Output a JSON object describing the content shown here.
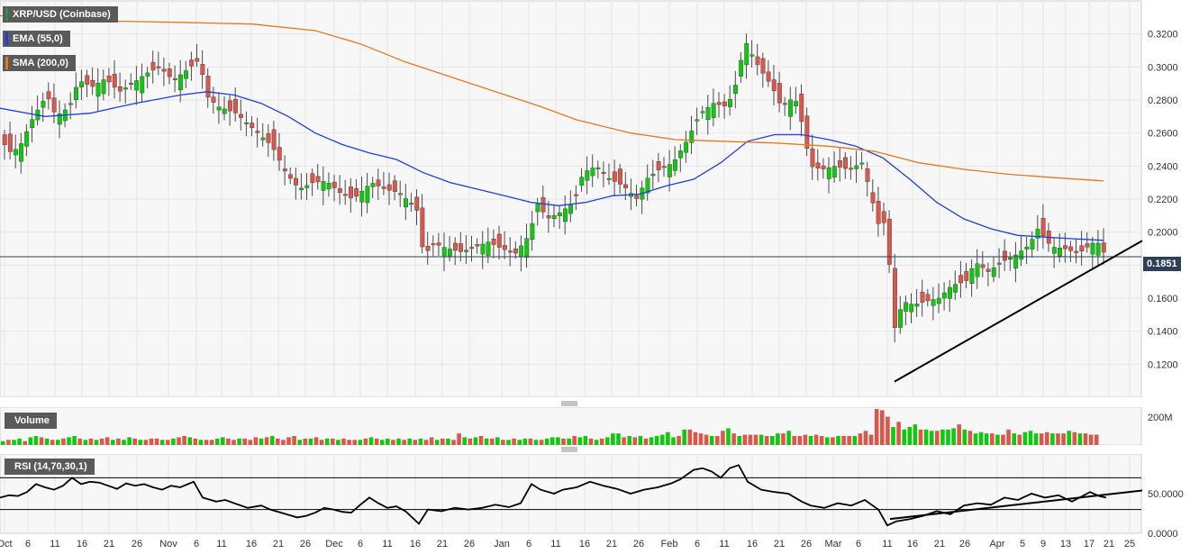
{
  "panels": {
    "price": {
      "legend": [
        {
          "key": "symbol",
          "text": "XRP/USD (Coinbase)",
          "color": "#2e8b57"
        },
        {
          "key": "ema",
          "text": "EMA (55,0)",
          "color": "#1f3fd6"
        },
        {
          "key": "sma",
          "text": "SMA (200,0)",
          "color": "#e07a1f"
        }
      ]
    },
    "volume": {
      "label": "Volume",
      "max_label": "200M"
    },
    "rsi": {
      "label": "RSI (14,70,30,1)"
    }
  },
  "colors": {
    "up": "#10c810",
    "down": "#d9574b",
    "ema": "#1f3fd6",
    "sma": "#e07a1f",
    "trendline": "#000000",
    "grid": "#e6e6e6",
    "plot_bg": "#f7f7f7"
  },
  "chart_data": [
    {
      "type": "candlestick",
      "title": "XRP/USD (Coinbase)",
      "ylim": [
        0.1,
        0.34
      ],
      "y_ticks": [
        "0.1200",
        "0.1400",
        "0.1600",
        "0.1800",
        "0.2000",
        "0.2200",
        "0.2400",
        "0.2600",
        "0.2800",
        "0.3000",
        "0.3200"
      ],
      "x_ticks": [
        "Oct",
        "6",
        "11",
        "16",
        "21",
        "26",
        "Nov",
        "6",
        "11",
        "16",
        "21",
        "26",
        "Dec",
        "6",
        "11",
        "16",
        "21",
        "26",
        "Jan",
        "6",
        "11",
        "16",
        "21",
        "26",
        "Feb",
        "6",
        "11",
        "16",
        "21",
        "26",
        "Mar",
        "6",
        "11",
        "16",
        "21",
        "26",
        "Apr",
        "5",
        "9",
        "13",
        "17",
        "21",
        "25"
      ],
      "current_price": "0.1851",
      "overlays": [
        {
          "name": "EMA (55,0)",
          "points": [
            [
              0,
              0.275
            ],
            [
              50,
              0.27
            ],
            [
              100,
              0.272
            ],
            [
              150,
              0.278
            ],
            [
              200,
              0.283
            ],
            [
              230,
              0.285
            ],
            [
              260,
              0.283
            ],
            [
              290,
              0.278
            ],
            [
              320,
              0.27
            ],
            [
              350,
              0.26
            ],
            [
              380,
              0.253
            ],
            [
              410,
              0.248
            ],
            [
              440,
              0.244
            ],
            [
              470,
              0.236
            ],
            [
              500,
              0.23
            ],
            [
              530,
              0.226
            ],
            [
              560,
              0.222
            ],
            [
              590,
              0.218
            ],
            [
              620,
              0.216
            ],
            [
              650,
              0.218
            ],
            [
              680,
              0.222
            ],
            [
              710,
              0.223
            ],
            [
              740,
              0.228
            ],
            [
              770,
              0.232
            ],
            [
              800,
              0.242
            ],
            [
              830,
              0.255
            ],
            [
              860,
              0.259
            ],
            [
              890,
              0.259
            ],
            [
              920,
              0.256
            ],
            [
              950,
              0.252
            ],
            [
              980,
              0.245
            ],
            [
              1010,
              0.232
            ],
            [
              1040,
              0.218
            ],
            [
              1070,
              0.208
            ],
            [
              1100,
              0.202
            ],
            [
              1130,
              0.198
            ],
            [
              1160,
              0.197
            ],
            [
              1190,
              0.196
            ],
            [
              1225,
              0.195
            ]
          ]
        },
        {
          "name": "SMA (200,0)",
          "points": [
            [
              0,
              0.331
            ],
            [
              100,
              0.328
            ],
            [
              200,
              0.327
            ],
            [
              280,
              0.326
            ],
            [
              350,
              0.322
            ],
            [
              400,
              0.314
            ],
            [
              450,
              0.303
            ],
            [
              500,
              0.294
            ],
            [
              550,
              0.285
            ],
            [
              600,
              0.276
            ],
            [
              640,
              0.268
            ],
            [
              700,
              0.26
            ],
            [
              750,
              0.256
            ],
            [
              800,
              0.255
            ],
            [
              860,
              0.254
            ],
            [
              920,
              0.252
            ],
            [
              970,
              0.249
            ],
            [
              1020,
              0.242
            ],
            [
              1070,
              0.238
            ],
            [
              1120,
              0.235
            ],
            [
              1170,
              0.233
            ],
            [
              1225,
              0.231
            ]
          ]
        }
      ],
      "trendline": [
        [
          993,
          0.1095
        ],
        [
          1268,
          0.1948
        ]
      ]
    },
    {
      "type": "bar",
      "title": "Volume",
      "y_tick": "200M",
      "note": "daily volume bars (values relative)",
      "values": [
        3,
        4,
        4,
        5,
        3,
        6,
        7,
        6,
        5,
        4,
        4,
        5,
        6,
        7,
        5,
        4,
        5,
        4,
        5,
        6,
        4,
        5,
        4,
        6,
        5,
        4,
        4,
        5,
        5,
        4,
        4,
        5,
        6,
        7,
        6,
        5,
        4,
        4,
        4,
        5,
        6,
        5,
        4,
        5,
        5,
        4,
        6,
        5,
        6,
        7,
        5,
        4,
        6,
        7,
        4,
        5,
        5,
        6,
        4,
        5,
        5,
        4,
        5,
        4,
        4,
        4,
        5,
        6,
        5,
        4,
        5,
        4,
        5,
        4,
        5,
        4,
        5,
        4,
        6,
        4,
        5,
        5,
        4,
        9,
        6,
        5,
        6,
        7,
        5,
        5,
        6,
        4,
        4,
        5,
        4,
        5,
        5,
        4,
        4,
        5,
        6,
        6,
        5,
        5,
        7,
        6,
        7,
        5,
        4,
        5,
        6,
        9,
        9,
        6,
        7,
        6,
        7,
        5,
        6,
        7,
        8,
        10,
        6,
        7,
        12,
        12,
        10,
        9,
        8,
        7,
        7,
        11,
        13,
        9,
        7,
        8,
        8,
        8,
        8,
        7,
        7,
        9,
        9,
        11,
        7,
        7,
        8,
        7,
        8,
        7,
        6,
        6,
        7,
        7,
        7,
        7,
        9,
        11,
        8,
        28,
        27,
        22,
        14,
        18,
        12,
        14,
        16,
        12,
        12,
        11,
        11,
        12,
        12,
        13,
        16,
        12,
        11,
        9,
        10,
        9,
        9,
        8,
        8,
        12,
        9,
        8,
        10,
        11,
        9,
        9,
        10,
        9,
        9,
        9,
        11,
        10,
        9,
        9,
        8,
        8
      ],
      "colors_up": [
        1,
        0,
        1,
        1,
        0,
        1,
        1,
        0,
        1,
        0,
        1,
        0,
        1,
        1,
        0,
        1,
        0,
        1,
        0,
        0,
        1,
        0,
        1,
        1,
        0,
        1,
        0,
        0,
        0,
        1,
        0,
        1,
        0,
        0,
        1,
        0,
        1,
        0,
        0,
        1,
        1,
        0,
        0,
        1,
        0,
        0,
        0,
        1,
        0,
        1,
        0,
        0,
        0,
        0,
        1,
        0,
        1,
        0,
        0,
        1,
        0,
        1,
        0,
        0,
        0,
        1,
        0,
        1,
        0,
        1,
        1,
        0,
        1,
        0,
        1,
        0,
        1,
        0,
        0,
        1,
        0,
        1,
        0,
        0,
        1,
        0,
        1,
        0,
        1,
        0,
        1,
        0,
        1,
        0,
        1,
        1,
        0,
        1,
        0,
        1,
        1,
        1,
        0,
        1,
        0,
        1,
        1,
        0,
        1,
        0,
        1,
        1,
        1,
        0,
        1,
        0,
        1,
        0,
        1,
        1,
        1,
        1,
        1,
        0,
        1,
        0,
        0,
        0,
        0,
        1,
        0,
        0,
        1,
        0,
        1,
        0,
        0,
        0,
        1,
        0,
        1,
        1,
        0,
        1,
        0,
        0,
        0,
        1,
        0,
        0,
        1,
        0,
        1,
        0,
        0,
        1,
        0,
        0,
        0,
        0,
        0,
        0,
        1,
        0,
        1,
        1,
        1,
        0,
        1,
        1,
        0,
        1,
        1,
        1,
        0,
        1,
        0,
        1,
        1,
        1,
        0,
        1,
        0,
        0,
        1,
        0,
        1,
        1,
        1,
        0,
        0,
        1,
        0,
        0,
        1,
        0,
        1,
        0
      ]
    },
    {
      "type": "line",
      "title": "RSI (14,70,30,1)",
      "ylim": [
        0,
        100
      ],
      "y_ticks": [
        "0.0000",
        "50.0000"
      ],
      "levels": [
        70,
        30
      ],
      "series": [
        {
          "name": "RSI (14,70,30,1)",
          "values": [
            [
              0,
              45
            ],
            [
              10,
              48
            ],
            [
              20,
              47
            ],
            [
              30,
              52
            ],
            [
              40,
              62
            ],
            [
              50,
              58
            ],
            [
              60,
              55
            ],
            [
              70,
              60
            ],
            [
              80,
              70
            ],
            [
              90,
              62
            ],
            [
              100,
              65
            ],
            [
              110,
              64
            ],
            [
              120,
              60
            ],
            [
              130,
              56
            ],
            [
              140,
              63
            ],
            [
              150,
              60
            ],
            [
              160,
              62
            ],
            [
              170,
              58
            ],
            [
              180,
              55
            ],
            [
              190,
              60
            ],
            [
              200,
              58
            ],
            [
              215,
              65
            ],
            [
              225,
              45
            ],
            [
              240,
              40
            ],
            [
              250,
              42
            ],
            [
              260,
              38
            ],
            [
              275,
              32
            ],
            [
              290,
              35
            ],
            [
              300,
              30
            ],
            [
              315,
              25
            ],
            [
              330,
              20
            ],
            [
              340,
              22
            ],
            [
              350,
              26
            ],
            [
              360,
              32
            ],
            [
              370,
              30
            ],
            [
              380,
              27
            ],
            [
              390,
              26
            ],
            [
              400,
              36
            ],
            [
              410,
              45
            ],
            [
              420,
              38
            ],
            [
              430,
              32
            ],
            [
              440,
              34
            ],
            [
              450,
              28
            ],
            [
              465,
              12
            ],
            [
              475,
              30
            ],
            [
              490,
              28
            ],
            [
              505,
              32
            ],
            [
              520,
              30
            ],
            [
              535,
              32
            ],
            [
              550,
              36
            ],
            [
              565,
              33
            ],
            [
              578,
              38
            ],
            [
              590,
              62
            ],
            [
              600,
              55
            ],
            [
              615,
              50
            ],
            [
              625,
              55
            ],
            [
              640,
              58
            ],
            [
              655,
              65
            ],
            [
              670,
              60
            ],
            [
              685,
              56
            ],
            [
              700,
              50
            ],
            [
              715,
              55
            ],
            [
              730,
              58
            ],
            [
              745,
              63
            ],
            [
              755,
              68
            ],
            [
              770,
              80
            ],
            [
              780,
              82
            ],
            [
              790,
              78
            ],
            [
              800,
              70
            ],
            [
              810,
              82
            ],
            [
              820,
              86
            ],
            [
              830,
              65
            ],
            [
              845,
              55
            ],
            [
              860,
              52
            ],
            [
              875,
              50
            ],
            [
              890,
              40
            ],
            [
              900,
              35
            ],
            [
              915,
              32
            ],
            [
              930,
              38
            ],
            [
              945,
              35
            ],
            [
              960,
              42
            ],
            [
              975,
              30
            ],
            [
              985,
              10
            ],
            [
              995,
              15
            ],
            [
              1010,
              18
            ],
            [
              1025,
              22
            ],
            [
              1040,
              28
            ],
            [
              1055,
              24
            ],
            [
              1070,
              35
            ],
            [
              1085,
              38
            ],
            [
              1100,
              36
            ],
            [
              1115,
              45
            ],
            [
              1130,
              42
            ],
            [
              1145,
              50
            ],
            [
              1160,
              45
            ],
            [
              1175,
              48
            ],
            [
              1190,
              40
            ],
            [
              1200,
              46
            ],
            [
              1210,
              52
            ],
            [
              1220,
              47
            ],
            [
              1228,
              45
            ]
          ]
        }
      ],
      "trendline": [
        [
          988,
          18
        ],
        [
          1268,
          54
        ]
      ]
    }
  ]
}
